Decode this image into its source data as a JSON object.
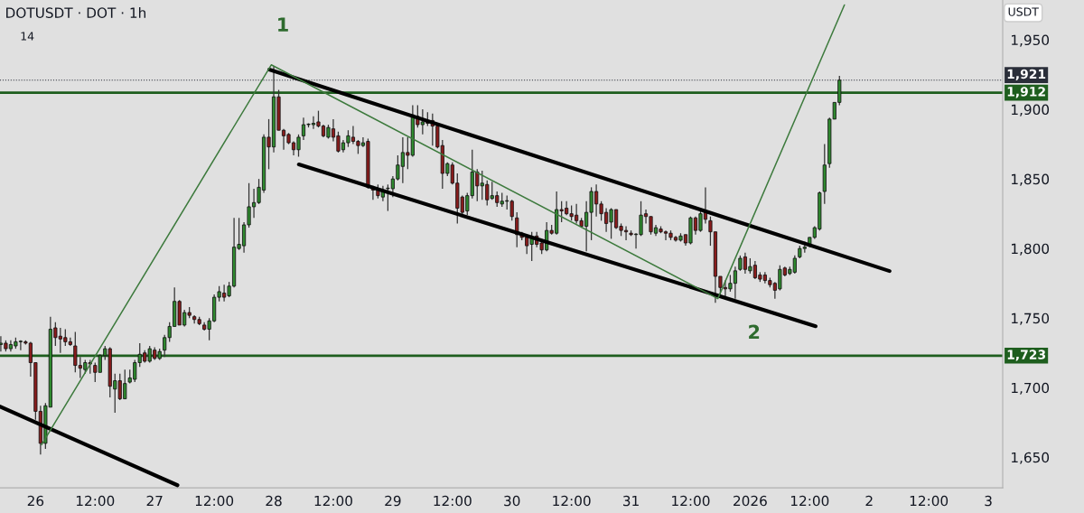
{
  "chart_data": {
    "type": "candlestick",
    "title": "DOTUSDT · DOT · 1h",
    "ylabel": "USDT",
    "annotations": [
      "14",
      "1",
      "2"
    ],
    "x": [
      "2025-12-25T17:00",
      "2025-12-25T18:00",
      "2025-12-25T19:00",
      "2025-12-25T20:00",
      "2025-12-25T21:00",
      "2025-12-25T22:00",
      "2025-12-25T23:00",
      "2025-12-26T00:00",
      "2025-12-26T01:00",
      "2025-12-26T02:00",
      "2025-12-26T03:00",
      "2025-12-26T04:00",
      "2025-12-26T05:00",
      "2025-12-26T06:00",
      "2025-12-26T07:00",
      "2025-12-26T08:00",
      "2025-12-26T09:00",
      "2025-12-26T10:00",
      "2025-12-26T11:00",
      "2025-12-26T12:00",
      "2025-12-26T13:00",
      "2025-12-26T14:00",
      "2025-12-26T15:00",
      "2025-12-26T16:00",
      "2025-12-26T17:00",
      "2025-12-26T18:00",
      "2025-12-26T19:00",
      "2025-12-26T20:00",
      "2025-12-26T21:00",
      "2025-12-26T22:00",
      "2025-12-26T23:00",
      "2025-12-27T00:00",
      "2025-12-27T01:00",
      "2025-12-27T02:00",
      "2025-12-27T03:00",
      "2025-12-27T04:00",
      "2025-12-27T05:00",
      "2025-12-27T06:00",
      "2025-12-27T07:00",
      "2025-12-27T08:00",
      "2025-12-27T09:00",
      "2025-12-27T10:00",
      "2025-12-27T11:00",
      "2025-12-27T12:00",
      "2025-12-27T13:00",
      "2025-12-27T14:00",
      "2025-12-27T15:00",
      "2025-12-27T16:00",
      "2025-12-27T17:00",
      "2025-12-27T18:00",
      "2025-12-27T19:00",
      "2025-12-27T20:00",
      "2025-12-27T21:00",
      "2025-12-27T22:00",
      "2025-12-27T23:00",
      "2025-12-28T00:00",
      "2025-12-28T01:00",
      "2025-12-28T02:00",
      "2025-12-28T03:00",
      "2025-12-28T04:00",
      "2025-12-28T05:00",
      "2025-12-28T06:00",
      "2025-12-28T07:00",
      "2025-12-28T08:00",
      "2025-12-28T09:00",
      "2025-12-28T10:00",
      "2025-12-28T11:00",
      "2025-12-28T12:00",
      "2025-12-28T13:00",
      "2025-12-28T14:00",
      "2025-12-28T15:00",
      "2025-12-28T16:00",
      "2025-12-28T17:00",
      "2025-12-28T18:00",
      "2025-12-28T19:00",
      "2025-12-28T20:00",
      "2025-12-28T21:00",
      "2025-12-28T22:00",
      "2025-12-28T23:00",
      "2025-12-29T00:00",
      "2025-12-29T01:00",
      "2025-12-29T02:00",
      "2025-12-29T03:00",
      "2025-12-29T04:00",
      "2025-12-29T05:00",
      "2025-12-29T06:00",
      "2025-12-29T07:00",
      "2025-12-29T08:00",
      "2025-12-29T09:00",
      "2025-12-29T10:00",
      "2025-12-29T11:00",
      "2025-12-29T12:00",
      "2025-12-29T13:00",
      "2025-12-29T14:00",
      "2025-12-29T15:00",
      "2025-12-29T16:00",
      "2025-12-29T17:00",
      "2025-12-29T18:00",
      "2025-12-29T19:00",
      "2025-12-29T20:00",
      "2025-12-29T21:00",
      "2025-12-29T22:00",
      "2025-12-29T23:00",
      "2025-12-30T00:00",
      "2025-12-30T01:00",
      "2025-12-30T02:00",
      "2025-12-30T03:00",
      "2025-12-30T04:00",
      "2025-12-30T05:00",
      "2025-12-30T06:00",
      "2025-12-30T07:00",
      "2025-12-30T08:00",
      "2025-12-30T09:00",
      "2025-12-30T10:00",
      "2025-12-30T11:00",
      "2025-12-30T12:00",
      "2025-12-30T13:00",
      "2025-12-30T14:00",
      "2025-12-30T15:00",
      "2025-12-30T16:00",
      "2025-12-30T17:00",
      "2025-12-30T18:00",
      "2025-12-30T19:00",
      "2025-12-30T20:00",
      "2025-12-30T21:00",
      "2025-12-30T22:00",
      "2025-12-30T23:00",
      "2025-12-31T00:00",
      "2025-12-31T01:00",
      "2025-12-31T02:00",
      "2025-12-31T03:00",
      "2025-12-31T04:00",
      "2025-12-31T05:00",
      "2025-12-31T06:00",
      "2025-12-31T07:00",
      "2025-12-31T08:00",
      "2025-12-31T09:00",
      "2025-12-31T10:00",
      "2025-12-31T11:00",
      "2025-12-31T12:00",
      "2025-12-31T13:00",
      "2025-12-31T14:00",
      "2025-12-31T15:00",
      "2025-12-31T16:00",
      "2025-12-31T17:00",
      "2025-12-31T18:00",
      "2025-12-31T19:00",
      "2025-12-31T20:00",
      "2025-12-31T21:00",
      "2025-12-31T22:00",
      "2025-12-31T23:00",
      "2026-01-01T00:00",
      "2026-01-01T01:00",
      "2026-01-01T02:00",
      "2026-01-01T03:00",
      "2026-01-01T04:00",
      "2026-01-01T05:00",
      "2026-01-01T06:00",
      "2026-01-01T07:00",
      "2026-01-01T08:00",
      "2026-01-01T09:00",
      "2026-01-01T10:00",
      "2026-01-01T11:00",
      "2026-01-01T12:00",
      "2026-01-01T13:00",
      "2026-01-01T14:00",
      "2026-01-01T15:00",
      "2026-01-01T16:00",
      "2026-01-01T17:00",
      "2026-01-01T18:00"
    ],
    "ohlc": [
      [
        1731,
        1737,
        1726,
        1732
      ],
      [
        1732,
        1734,
        1726,
        1728
      ],
      [
        1728,
        1734,
        1726,
        1731
      ],
      [
        1730,
        1736,
        1728,
        1733
      ],
      [
        1733,
        1734,
        1727,
        1733
      ],
      [
        1733,
        1734,
        1731,
        1732
      ],
      [
        1732,
        1733,
        1708,
        1718
      ],
      [
        1718,
        1718,
        1677,
        1683
      ],
      [
        1683,
        1687,
        1652,
        1660
      ],
      [
        1660,
        1689,
        1656,
        1687
      ],
      [
        1686,
        1751,
        1686,
        1742
      ],
      [
        1743,
        1747,
        1730,
        1736
      ],
      [
        1737,
        1743,
        1725,
        1735
      ],
      [
        1736,
        1742,
        1730,
        1733
      ],
      [
        1733,
        1736,
        1730,
        1731
      ],
      [
        1730,
        1740,
        1711,
        1716
      ],
      [
        1716,
        1722,
        1707,
        1714
      ],
      [
        1713,
        1720,
        1710,
        1718
      ],
      [
        1718,
        1720,
        1710,
        1717
      ],
      [
        1716,
        1718,
        1704,
        1711
      ],
      [
        1711,
        1724,
        1711,
        1723
      ],
      [
        1723,
        1730,
        1720,
        1728
      ],
      [
        1728,
        1729,
        1693,
        1701
      ],
      [
        1699,
        1710,
        1682,
        1705
      ],
      [
        1705,
        1710,
        1691,
        1692
      ],
      [
        1692,
        1713,
        1692,
        1703
      ],
      [
        1704,
        1713,
        1703,
        1707
      ],
      [
        1706,
        1720,
        1704,
        1718
      ],
      [
        1718,
        1732,
        1715,
        1724
      ],
      [
        1725,
        1727,
        1718,
        1719
      ],
      [
        1719,
        1730,
        1718,
        1728
      ],
      [
        1727,
        1729,
        1720,
        1721
      ],
      [
        1721,
        1728,
        1720,
        1726
      ],
      [
        1727,
        1738,
        1722,
        1736
      ],
      [
        1736,
        1747,
        1733,
        1744
      ],
      [
        1744,
        1772,
        1744,
        1762
      ],
      [
        1762,
        1763,
        1745,
        1745
      ],
      [
        1745,
        1756,
        1744,
        1754
      ],
      [
        1754,
        1758,
        1750,
        1752
      ],
      [
        1751,
        1752,
        1746,
        1749
      ],
      [
        1749,
        1751,
        1745,
        1746
      ],
      [
        1745,
        1747,
        1741,
        1742
      ],
      [
        1742,
        1750,
        1734,
        1748
      ],
      [
        1748,
        1767,
        1747,
        1765
      ],
      [
        1765,
        1773,
        1762,
        1769
      ],
      [
        1768,
        1774,
        1762,
        1765
      ],
      [
        1766,
        1776,
        1765,
        1773
      ],
      [
        1773,
        1822,
        1772,
        1801
      ],
      [
        1800,
        1822,
        1799,
        1803
      ],
      [
        1802,
        1819,
        1797,
        1817
      ],
      [
        1817,
        1847,
        1815,
        1830
      ],
      [
        1830,
        1843,
        1822,
        1833
      ],
      [
        1833,
        1850,
        1832,
        1844
      ],
      [
        1842,
        1882,
        1840,
        1880
      ],
      [
        1880,
        1893,
        1857,
        1873
      ],
      [
        1873,
        1931,
        1869,
        1909
      ],
      [
        1909,
        1914,
        1885,
        1885
      ],
      [
        1885,
        1886,
        1871,
        1881
      ],
      [
        1882,
        1883,
        1875,
        1876
      ],
      [
        1876,
        1877,
        1867,
        1871
      ],
      [
        1871,
        1882,
        1866,
        1880
      ],
      [
        1881,
        1894,
        1878,
        1889
      ],
      [
        1889,
        1890,
        1887,
        1889
      ],
      [
        1889,
        1895,
        1886,
        1890
      ],
      [
        1891,
        1899,
        1887,
        1888
      ],
      [
        1888,
        1889,
        1880,
        1881
      ],
      [
        1880,
        1889,
        1879,
        1887
      ],
      [
        1886,
        1893,
        1877,
        1880
      ],
      [
        1881,
        1884,
        1869,
        1870
      ],
      [
        1871,
        1878,
        1869,
        1876
      ],
      [
        1876,
        1885,
        1873,
        1881
      ],
      [
        1880,
        1888,
        1875,
        1877
      ],
      [
        1877,
        1878,
        1868,
        1874
      ],
      [
        1874,
        1880,
        1873,
        1876
      ],
      [
        1877,
        1879,
        1843,
        1844
      ],
      [
        1844,
        1845,
        1835,
        1842
      ],
      [
        1842,
        1846,
        1836,
        1838
      ],
      [
        1837,
        1845,
        1834,
        1842
      ],
      [
        1843,
        1846,
        1827,
        1843
      ],
      [
        1843,
        1852,
        1837,
        1850
      ],
      [
        1850,
        1867,
        1849,
        1860
      ],
      [
        1859,
        1880,
        1847,
        1869
      ],
      [
        1869,
        1880,
        1857,
        1867
      ],
      [
        1867,
        1903,
        1866,
        1896
      ],
      [
        1895,
        1903,
        1887,
        1889
      ],
      [
        1889,
        1900,
        1882,
        1891
      ],
      [
        1892,
        1898,
        1888,
        1890
      ],
      [
        1892,
        1897,
        1874,
        1888
      ],
      [
        1888,
        1889,
        1872,
        1873
      ],
      [
        1874,
        1878,
        1843,
        1854
      ],
      [
        1854,
        1862,
        1852,
        1861
      ],
      [
        1860,
        1862,
        1846,
        1847
      ],
      [
        1847,
        1854,
        1818,
        1829
      ],
      [
        1837,
        1838,
        1823,
        1826
      ],
      [
        1827,
        1840,
        1824,
        1838
      ],
      [
        1838,
        1871,
        1836,
        1855
      ],
      [
        1855,
        1857,
        1834,
        1845
      ],
      [
        1845,
        1856,
        1835,
        1847
      ],
      [
        1846,
        1849,
        1831,
        1835
      ],
      [
        1836,
        1848,
        1835,
        1838
      ],
      [
        1838,
        1841,
        1830,
        1833
      ],
      [
        1832,
        1840,
        1830,
        1834
      ],
      [
        1834,
        1838,
        1828,
        1834
      ],
      [
        1834,
        1835,
        1820,
        1823
      ],
      [
        1822,
        1826,
        1801,
        1810
      ],
      [
        1811,
        1812,
        1806,
        1808
      ],
      [
        1808,
        1810,
        1796,
        1802
      ],
      [
        1803,
        1812,
        1791,
        1808
      ],
      [
        1809,
        1812,
        1801,
        1803
      ],
      [
        1804,
        1806,
        1796,
        1799
      ],
      [
        1799,
        1819,
        1798,
        1813
      ],
      [
        1813,
        1817,
        1810,
        1811
      ],
      [
        1811,
        1841,
        1810,
        1828
      ],
      [
        1828,
        1834,
        1819,
        1827
      ],
      [
        1829,
        1834,
        1824,
        1825
      ],
      [
        1825,
        1831,
        1820,
        1823
      ],
      [
        1824,
        1832,
        1818,
        1820
      ],
      [
        1820,
        1822,
        1815,
        1816
      ],
      [
        1816,
        1834,
        1798,
        1826
      ],
      [
        1826,
        1844,
        1806,
        1841
      ],
      [
        1841,
        1846,
        1823,
        1832
      ],
      [
        1832,
        1834,
        1820,
        1825
      ],
      [
        1826,
        1829,
        1812,
        1818
      ],
      [
        1819,
        1829,
        1807,
        1828
      ],
      [
        1828,
        1828,
        1814,
        1815
      ],
      [
        1816,
        1818,
        1809,
        1813
      ],
      [
        1813,
        1816,
        1806,
        1812
      ],
      [
        1811,
        1813,
        1809,
        1810
      ],
      [
        1810,
        1811,
        1800,
        1810
      ],
      [
        1810,
        1834,
        1809,
        1824
      ],
      [
        1825,
        1828,
        1818,
        1823
      ],
      [
        1823,
        1823,
        1810,
        1812
      ],
      [
        1811,
        1817,
        1809,
        1815
      ],
      [
        1814,
        1816,
        1811,
        1812
      ],
      [
        1812,
        1813,
        1806,
        1811
      ],
      [
        1811,
        1813,
        1806,
        1808
      ],
      [
        1808,
        1809,
        1805,
        1806
      ],
      [
        1806,
        1811,
        1805,
        1809
      ],
      [
        1810,
        1810,
        1802,
        1804
      ],
      [
        1804,
        1823,
        1803,
        1822
      ],
      [
        1822,
        1823,
        1810,
        1813
      ],
      [
        1813,
        1827,
        1812,
        1825
      ],
      [
        1826,
        1844,
        1818,
        1821
      ],
      [
        1820,
        1823,
        1802,
        1812
      ],
      [
        1812,
        1812,
        1761,
        1780
      ],
      [
        1780,
        1780,
        1765,
        1772
      ],
      [
        1772,
        1777,
        1764,
        1771
      ],
      [
        1771,
        1781,
        1769,
        1775
      ],
      [
        1775,
        1787,
        1764,
        1784
      ],
      [
        1785,
        1795,
        1784,
        1793
      ],
      [
        1794,
        1797,
        1782,
        1785
      ],
      [
        1784,
        1793,
        1782,
        1787
      ],
      [
        1788,
        1791,
        1778,
        1779
      ],
      [
        1781,
        1783,
        1776,
        1778
      ],
      [
        1781,
        1783,
        1775,
        1777
      ],
      [
        1777,
        1779,
        1772,
        1774
      ],
      [
        1775,
        1776,
        1764,
        1770
      ],
      [
        1771,
        1788,
        1770,
        1785
      ],
      [
        1786,
        1787,
        1780,
        1781
      ],
      [
        1782,
        1787,
        1781,
        1785
      ],
      [
        1783,
        1795,
        1782,
        1793
      ],
      [
        1794,
        1802,
        1793,
        1800
      ],
      [
        1800,
        1805,
        1797,
        1801
      ],
      [
        1802,
        1808,
        1801,
        1808
      ],
      [
        1808,
        1816,
        1807,
        1815
      ],
      [
        1814,
        1841,
        1813,
        1840
      ],
      [
        1841,
        1875,
        1832,
        1860
      ],
      [
        1861,
        1894,
        1858,
        1893
      ],
      [
        1893,
        1905,
        1893,
        1905
      ],
      [
        1905,
        1924,
        1903,
        1921
      ]
    ],
    "series": [
      {
        "type": "line",
        "x": [
          "2025-12-27T23:06",
          "2026-01-02T04:06"
        ],
        "values": [
          1928.6,
          1783.8
        ],
        "color": "#000000"
      },
      {
        "type": "line",
        "x": [
          "2025-12-28T05:03",
          "2026-01-01T13:12"
        ],
        "values": [
          1860.4,
          1744.2
        ],
        "color": "#000000"
      },
      {
        "type": "line",
        "x": [
          "2025-12-25T16:50",
          "2025-12-27T04:36"
        ],
        "values": [
          1686.4,
          1629.9
        ],
        "color": "#000000"
      },
      {
        "type": "line",
        "x": [
          "2025-12-26T01:13",
          "2025-12-27T23:30",
          "2025-12-31T17:30",
          "2026-01-01T19:00"
        ],
        "values": [
          1659,
          1932,
          1764,
          1975
        ],
        "color": "#3d7a3d"
      }
    ],
    "ref_lines": [
      {
        "axis": "y",
        "value": 1921,
        "label": "1,921",
        "color": "#2a2e39",
        "line_style": "dotted"
      },
      {
        "axis": "y",
        "value": 1912,
        "label": "1,912",
        "color": "#1e5e1e",
        "line_style": "solid"
      },
      {
        "axis": "y",
        "value": 1723,
        "label": "1,723",
        "color": "#1e5e1e",
        "line_style": "solid"
      }
    ],
    "xlim": [
      "2025-12-25T16:50",
      "2026-01-03T02:54"
    ],
    "xticks": [
      {
        "value": "2025-12-26",
        "label": "26"
      },
      {
        "value": "2025-12-26T12:00",
        "label": "12:00"
      },
      {
        "value": "2025-12-27",
        "label": "27"
      },
      {
        "value": "2025-12-27T12:00",
        "label": "12:00"
      },
      {
        "value": "2025-12-28",
        "label": "28"
      },
      {
        "value": "2025-12-28T12:00",
        "label": "12:00"
      },
      {
        "value": "2025-12-29",
        "label": "29"
      },
      {
        "value": "2025-12-29T12:00",
        "label": "12:00"
      },
      {
        "value": "2025-12-30",
        "label": "30"
      },
      {
        "value": "2025-12-30T12:00",
        "label": "12:00"
      },
      {
        "value": "2025-12-31",
        "label": "31"
      },
      {
        "value": "2025-12-31T12:00",
        "label": "12:00"
      },
      {
        "value": "2026-01-01",
        "label": "2026"
      },
      {
        "value": "2026-01-01T12:00",
        "label": "12:00"
      },
      {
        "value": "2026-01-02",
        "label": "2"
      },
      {
        "value": "2026-01-02T12:00",
        "label": "12:00"
      },
      {
        "value": "2026-01-03",
        "label": "3"
      }
    ],
    "ylim": [
      1628,
      1978.6
    ],
    "yticks": [
      {
        "value": 1650,
        "label": "1,650"
      },
      {
        "value": 1700,
        "label": "1,700"
      },
      {
        "value": 1750,
        "label": "1,750"
      },
      {
        "value": 1800,
        "label": "1,800"
      },
      {
        "value": 1850,
        "label": "1,850"
      },
      {
        "value": 1900,
        "label": "1,900"
      },
      {
        "value": 1950,
        "label": "1,950"
      }
    ],
    "grid": false,
    "legend": false
  }
}
